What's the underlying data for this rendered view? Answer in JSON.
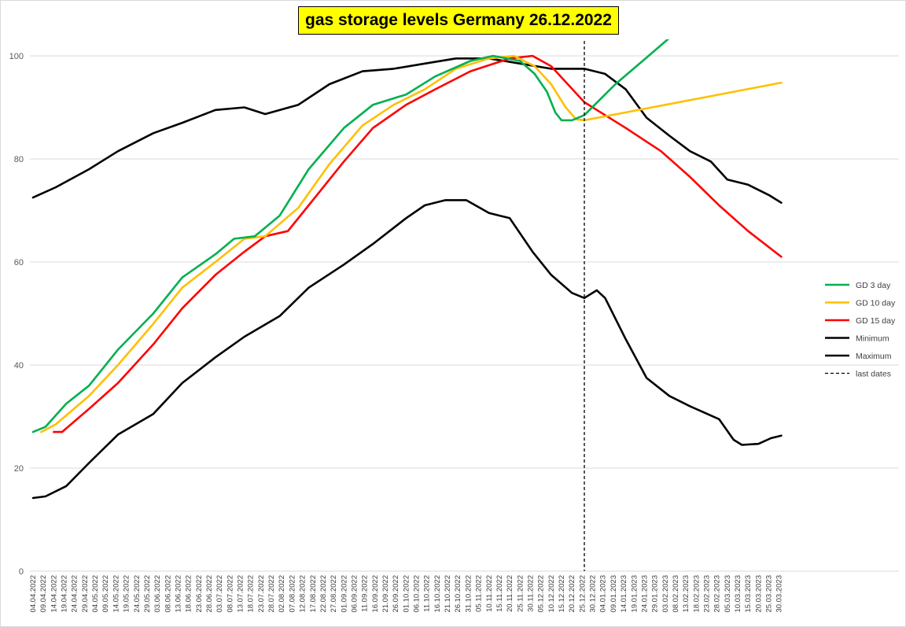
{
  "chart_data": {
    "type": "line",
    "title": "gas storage levels Germany 26.12.2022",
    "ylim": [
      0,
      100
    ],
    "yticks": [
      0,
      20,
      40,
      60,
      80,
      100
    ],
    "grid": "horizontal",
    "legend_position": "right",
    "x_start": "2022-04-04",
    "x_end": "2023-04-01",
    "x_tick_labels": [
      "04.04.2022",
      "09.04.2022",
      "14.04.2022",
      "19.04.2022",
      "24.04.2022",
      "29.04.2022",
      "04.05.2022",
      "09.05.2022",
      "14.05.2022",
      "19.05.2022",
      "24.05.2022",
      "29.05.2022",
      "03.06.2022",
      "08.06.2022",
      "13.06.2022",
      "18.06.2022",
      "23.06.2022",
      "28.06.2022",
      "03.07.2022",
      "08.07.2022",
      "13.07.2022",
      "18.07.2022",
      "23.07.2022",
      "28.07.2022",
      "02.08.2022",
      "07.08.2022",
      "12.08.2022",
      "17.08.2022",
      "22.08.2022",
      "27.08.2022",
      "01.09.2022",
      "06.09.2022",
      "11.09.2022",
      "16.09.2022",
      "21.09.2022",
      "26.09.2022",
      "01.10.2022",
      "06.10.2022",
      "11.10.2022",
      "16.10.2022",
      "21.10.2022",
      "26.10.2022",
      "31.10.2022",
      "05.11.2022",
      "10.11.2022",
      "15.11.2022",
      "20.11.2022",
      "25.11.2022",
      "30.11.2022",
      "05.12.2022",
      "10.12.2022",
      "15.12.2022",
      "20.12.2022",
      "25.12.2022",
      "30.12.2022",
      "04.01.2023",
      "09.01.2023",
      "14.01.2023",
      "19.01.2023",
      "24.01.2023",
      "29.01.2023",
      "03.02.2023",
      "08.02.2023",
      "13.02.2023",
      "18.02.2023",
      "23.02.2023",
      "28.02.2023",
      "05.03.2023",
      "10.03.2023",
      "15.03.2023",
      "20.03.2023",
      "25.03.2023",
      "30.03.2023"
    ],
    "vline": {
      "x": "2022-12-26",
      "name": "last dates"
    },
    "series": [
      {
        "name": "GD 3 day",
        "color": "#00b050",
        "points": [
          [
            "2022-04-04",
            27.0
          ],
          [
            "2022-04-10",
            28.0
          ],
          [
            "2022-04-20",
            32.5
          ],
          [
            "2022-05-01",
            36.0
          ],
          [
            "2022-05-15",
            43.0
          ],
          [
            "2022-06-01",
            50.0
          ],
          [
            "2022-06-15",
            57.0
          ],
          [
            "2022-07-01",
            61.5
          ],
          [
            "2022-07-10",
            64.5
          ],
          [
            "2022-07-20",
            65.0
          ],
          [
            "2022-08-01",
            69.0
          ],
          [
            "2022-08-15",
            78.0
          ],
          [
            "2022-09-01",
            86.0
          ],
          [
            "2022-09-15",
            90.5
          ],
          [
            "2022-10-01",
            92.5
          ],
          [
            "2022-10-15",
            96.0
          ],
          [
            "2022-11-01",
            99.0
          ],
          [
            "2022-11-12",
            100.0
          ],
          [
            "2022-11-25",
            99.0
          ],
          [
            "2022-12-02",
            96.5
          ],
          [
            "2022-12-08",
            93.0
          ],
          [
            "2022-12-12",
            89.0
          ],
          [
            "2022-12-15",
            87.5
          ],
          [
            "2022-12-20",
            87.5
          ],
          [
            "2022-12-26",
            88.5
          ],
          [
            "2023-01-10",
            94.5
          ],
          [
            "2023-01-26",
            100.0
          ],
          [
            "2023-02-08",
            104.5
          ]
        ]
      },
      {
        "name": "GD 10 day",
        "color": "#ffc000",
        "points": [
          [
            "2022-04-08",
            27.0
          ],
          [
            "2022-04-15",
            28.5
          ],
          [
            "2022-05-01",
            34.0
          ],
          [
            "2022-05-15",
            40.0
          ],
          [
            "2022-06-01",
            48.0
          ],
          [
            "2022-06-15",
            55.0
          ],
          [
            "2022-07-01",
            60.0
          ],
          [
            "2022-07-15",
            64.5
          ],
          [
            "2022-07-25",
            65.0
          ],
          [
            "2022-08-10",
            70.5
          ],
          [
            "2022-08-25",
            79.0
          ],
          [
            "2022-09-10",
            86.5
          ],
          [
            "2022-09-25",
            90.5
          ],
          [
            "2022-10-10",
            93.5
          ],
          [
            "2022-10-25",
            97.5
          ],
          [
            "2022-11-10",
            99.5
          ],
          [
            "2022-11-22",
            100.0
          ],
          [
            "2022-12-02",
            98.0
          ],
          [
            "2022-12-10",
            94.5
          ],
          [
            "2022-12-17",
            90.0
          ],
          [
            "2022-12-22",
            87.7
          ],
          [
            "2022-12-26",
            87.5
          ],
          [
            "2023-03-31",
            94.8
          ]
        ]
      },
      {
        "name": "GD 15 day",
        "color": "#ff0000",
        "points": [
          [
            "2022-04-14",
            27.0
          ],
          [
            "2022-04-18",
            27.0
          ],
          [
            "2022-05-01",
            31.5
          ],
          [
            "2022-05-15",
            36.5
          ],
          [
            "2022-06-01",
            44.0
          ],
          [
            "2022-06-15",
            51.0
          ],
          [
            "2022-07-01",
            57.5
          ],
          [
            "2022-07-15",
            62.0
          ],
          [
            "2022-07-25",
            65.0
          ],
          [
            "2022-08-05",
            66.0
          ],
          [
            "2022-08-15",
            71.0
          ],
          [
            "2022-09-01",
            79.5
          ],
          [
            "2022-09-15",
            86.0
          ],
          [
            "2022-10-01",
            90.5
          ],
          [
            "2022-10-15",
            93.5
          ],
          [
            "2022-11-01",
            97.0
          ],
          [
            "2022-11-20",
            99.5
          ],
          [
            "2022-12-01",
            100.0
          ],
          [
            "2022-12-10",
            98.0
          ],
          [
            "2022-12-18",
            94.5
          ],
          [
            "2022-12-26",
            91.0
          ],
          [
            "2023-01-15",
            86.0
          ],
          [
            "2023-02-01",
            81.5
          ],
          [
            "2023-02-15",
            76.5
          ],
          [
            "2023-03-01",
            71.0
          ],
          [
            "2023-03-15",
            66.0
          ],
          [
            "2023-03-31",
            61.0
          ]
        ]
      },
      {
        "name": "Minimum",
        "color": "#000000",
        "points": [
          [
            "2022-04-04",
            14.2
          ],
          [
            "2022-04-10",
            14.5
          ],
          [
            "2022-04-20",
            16.5
          ],
          [
            "2022-05-01",
            21.0
          ],
          [
            "2022-05-15",
            26.5
          ],
          [
            "2022-06-01",
            30.5
          ],
          [
            "2022-06-15",
            36.5
          ],
          [
            "2022-07-01",
            41.5
          ],
          [
            "2022-07-15",
            45.5
          ],
          [
            "2022-08-01",
            49.5
          ],
          [
            "2022-08-15",
            55.0
          ],
          [
            "2022-09-01",
            59.5
          ],
          [
            "2022-09-15",
            63.5
          ],
          [
            "2022-10-01",
            68.5
          ],
          [
            "2022-10-10",
            71.0
          ],
          [
            "2022-10-20",
            72.0
          ],
          [
            "2022-10-30",
            72.0
          ],
          [
            "2022-11-10",
            69.5
          ],
          [
            "2022-11-20",
            68.5
          ],
          [
            "2022-12-01",
            62.0
          ],
          [
            "2022-12-10",
            57.5
          ],
          [
            "2022-12-20",
            54.0
          ],
          [
            "2022-12-26",
            53.0
          ],
          [
            "2023-01-01",
            54.5
          ],
          [
            "2023-01-05",
            53.0
          ],
          [
            "2023-01-15",
            45.0
          ],
          [
            "2023-01-25",
            37.5
          ],
          [
            "2023-02-05",
            34.0
          ],
          [
            "2023-02-15",
            32.0
          ],
          [
            "2023-03-01",
            29.5
          ],
          [
            "2023-03-08",
            25.5
          ],
          [
            "2023-03-12",
            24.5
          ],
          [
            "2023-03-20",
            24.7
          ],
          [
            "2023-03-26",
            25.8
          ],
          [
            "2023-03-31",
            26.3
          ]
        ]
      },
      {
        "name": "Maximum",
        "color": "#000000",
        "points": [
          [
            "2022-04-04",
            72.5
          ],
          [
            "2022-04-15",
            74.5
          ],
          [
            "2022-05-01",
            78.0
          ],
          [
            "2022-05-15",
            81.5
          ],
          [
            "2022-06-01",
            85.0
          ],
          [
            "2022-06-15",
            87.0
          ],
          [
            "2022-07-01",
            89.5
          ],
          [
            "2022-07-15",
            90.0
          ],
          [
            "2022-07-25",
            88.7
          ],
          [
            "2022-08-10",
            90.5
          ],
          [
            "2022-08-25",
            94.5
          ],
          [
            "2022-09-10",
            97.0
          ],
          [
            "2022-09-25",
            97.5
          ],
          [
            "2022-10-10",
            98.5
          ],
          [
            "2022-10-25",
            99.5
          ],
          [
            "2022-11-10",
            99.5
          ],
          [
            "2022-11-25",
            98.5
          ],
          [
            "2022-12-10",
            97.5
          ],
          [
            "2022-12-26",
            97.5
          ],
          [
            "2023-01-05",
            96.5
          ],
          [
            "2023-01-15",
            93.5
          ],
          [
            "2023-01-25",
            88.0
          ],
          [
            "2023-02-05",
            84.5
          ],
          [
            "2023-02-15",
            81.5
          ],
          [
            "2023-02-25",
            79.5
          ],
          [
            "2023-03-05",
            76.0
          ],
          [
            "2023-03-15",
            75.0
          ],
          [
            "2023-03-25",
            73.0
          ],
          [
            "2023-03-31",
            71.5
          ]
        ]
      }
    ]
  }
}
